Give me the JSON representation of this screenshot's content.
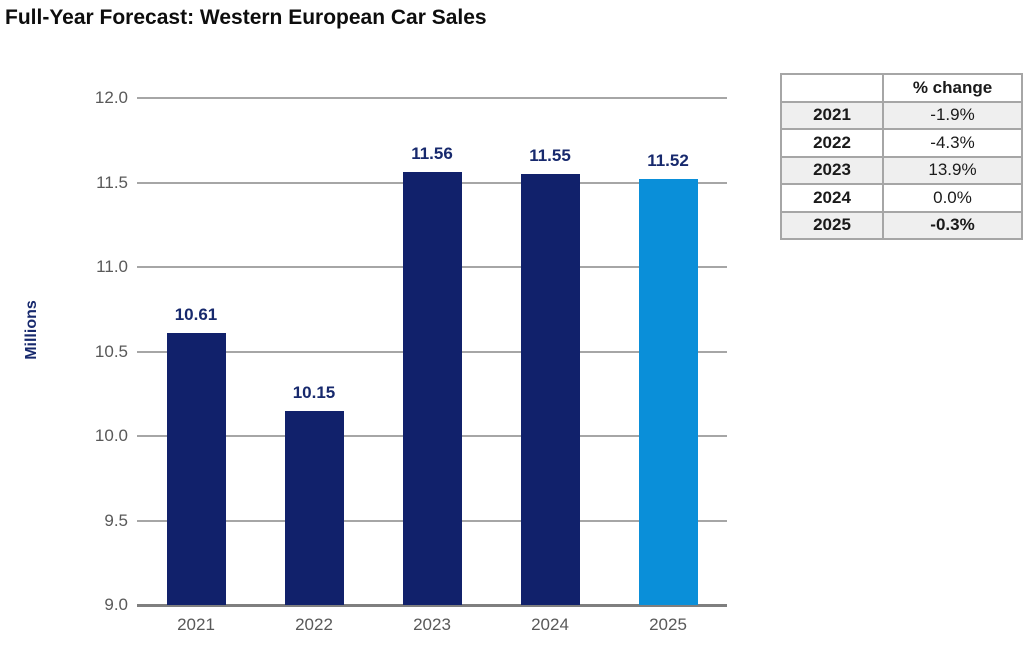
{
  "title": "Full-Year Forecast: Western European Car Sales",
  "chart_data": {
    "type": "bar",
    "title": "Full-Year Forecast: Western European Car Sales",
    "categories": [
      "2021",
      "2022",
      "2023",
      "2024",
      "2025"
    ],
    "values": [
      10.61,
      10.15,
      11.56,
      11.55,
      11.52
    ],
    "bar_labels": [
      "10.61",
      "10.15",
      "11.56",
      "11.55",
      "11.52"
    ],
    "xlabel": "",
    "ylabel": "Millions",
    "ylim": [
      9.0,
      12.0
    ],
    "ytick_step": 0.5,
    "ytick_labels": [
      "12.0",
      "11.5",
      "11.0",
      "10.5",
      "10.0",
      "9.5",
      "9.0"
    ],
    "grid": true,
    "legend": false,
    "colors": {
      "bar_actual": "#11216b",
      "bar_forecast": "#0a8fd9",
      "bar_colors_per_category": [
        "#11216b",
        "#11216b",
        "#11216b",
        "#11216b",
        "#0a8fd9"
      ],
      "value_label": "#17296d",
      "axis_text": "#595959",
      "gridline": "#a6a6a6",
      "axis_line": "#7f7f7f"
    }
  },
  "table": {
    "header": [
      "",
      "% change"
    ],
    "rows": [
      {
        "year": "2021",
        "change": "-1.9%",
        "shaded": true,
        "bold_value": false
      },
      {
        "year": "2022",
        "change": "-4.3%",
        "shaded": false,
        "bold_value": false
      },
      {
        "year": "2023",
        "change": "13.9%",
        "shaded": true,
        "bold_value": false
      },
      {
        "year": "2024",
        "change": "0.0%",
        "shaded": false,
        "bold_value": false
      },
      {
        "year": "2025",
        "change": "-0.3%",
        "shaded": true,
        "bold_value": true
      }
    ]
  }
}
